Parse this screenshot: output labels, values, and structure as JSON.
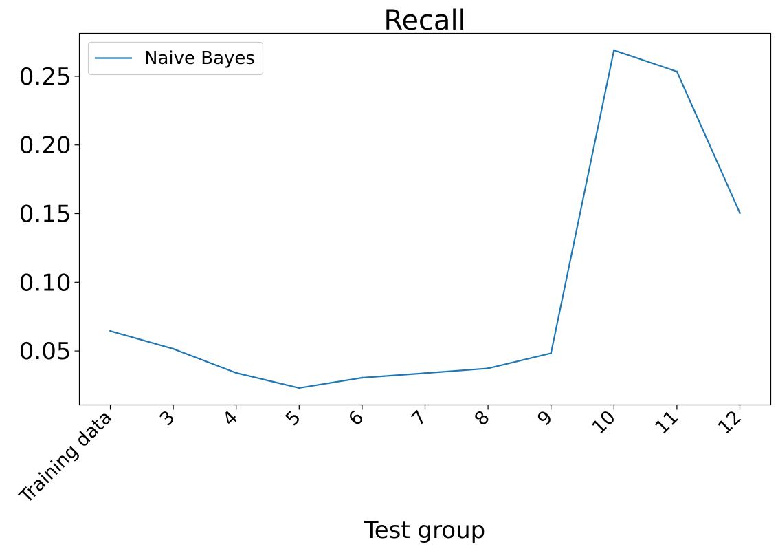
{
  "chart_data": {
    "type": "line",
    "title": "Recall",
    "xlabel": "Test group",
    "ylabel": "",
    "categories": [
      "Training data",
      "3",
      "4",
      "5",
      "6",
      "7",
      "8",
      "9",
      "10",
      "11",
      "12"
    ],
    "series": [
      {
        "name": "Naive Bayes",
        "color": "#1f77b4",
        "values": [
          0.0645,
          0.0515,
          0.034,
          0.023,
          0.0305,
          0.0338,
          0.0373,
          0.0483,
          0.269,
          0.2535,
          0.1505
        ]
      }
    ],
    "ylim": [
      0.0107,
      0.2813
    ],
    "yticks": [
      0.05,
      0.1,
      0.15,
      0.2,
      0.25
    ],
    "ytick_labels": [
      "0.05",
      "0.10",
      "0.15",
      "0.20",
      "0.25"
    ],
    "legend": {
      "position": "upper-left",
      "label": "Naive Bayes"
    },
    "grid": false
  }
}
